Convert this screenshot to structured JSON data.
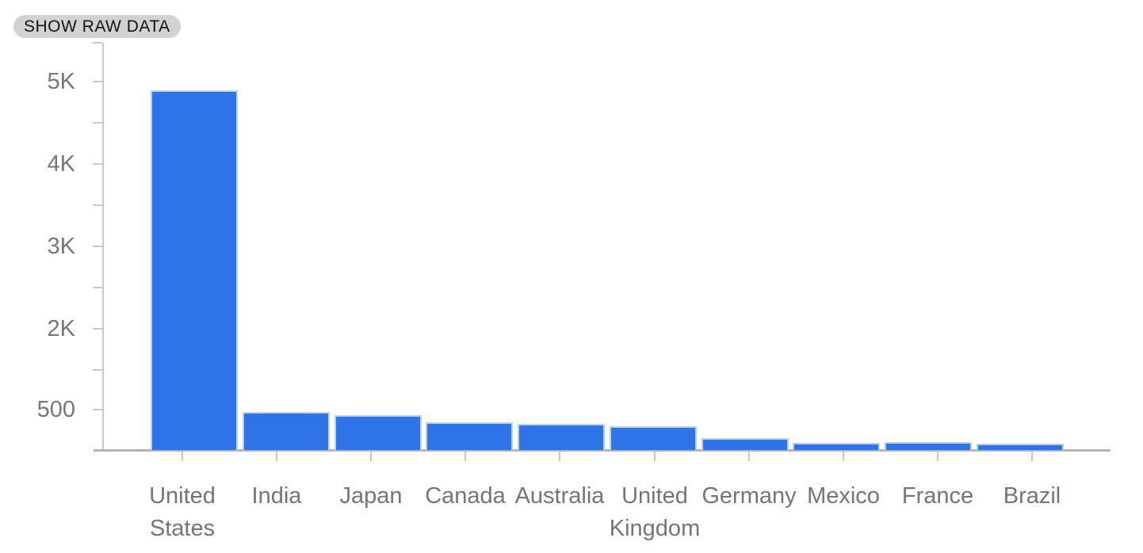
{
  "toolbar": {
    "show_raw_data_label": "SHOW RAW DATA"
  },
  "chart_data": {
    "type": "bar",
    "title": "",
    "xlabel": "",
    "ylabel": "",
    "categories": [
      "United States",
      "India",
      "Japan",
      "Canada",
      "Australia",
      "United Kingdom",
      "Germany",
      "Mexico",
      "France",
      "Brazil"
    ],
    "values": [
      4890,
      470,
      430,
      340,
      320,
      290,
      150,
      90,
      95,
      80
    ],
    "y_axis": {
      "tick_labels": [
        "5K",
        "4K",
        "3K",
        "2K",
        "500"
      ],
      "minor_ticks": true,
      "top_value": 5000
    },
    "legend_position": "none",
    "grid": false,
    "colors": {
      "bar_fill": "#2e74e8",
      "bar_stroke": "#bcd0f6",
      "axis_line": "#c9c9c9",
      "baseline": "#b4b4b4",
      "axis_label": "#757575",
      "button_bg": "#d2d2d2",
      "button_text": "#141414"
    }
  }
}
